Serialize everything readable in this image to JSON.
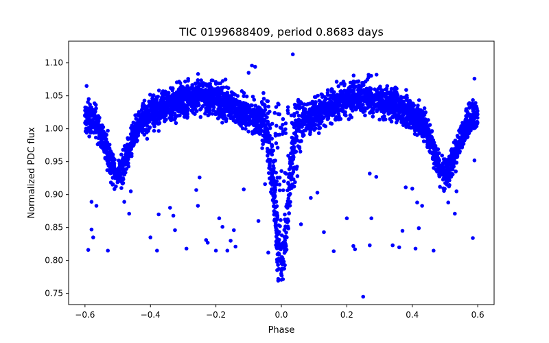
{
  "chart_data": {
    "type": "scatter",
    "title": "TIC 0199688409, period 0.8683 days",
    "xlabel": "Phase",
    "ylabel": "Normalized PDC flux",
    "xlim": [
      -0.65,
      0.65
    ],
    "ylim": [
      0.733,
      1.133
    ],
    "x_ticks": [
      -0.6,
      -0.4,
      -0.2,
      0.0,
      0.2,
      0.4,
      0.6
    ],
    "x_tick_labels": [
      "−0.6",
      "−0.4",
      "−0.2",
      "0.0",
      "0.2",
      "0.4",
      "0.6"
    ],
    "y_ticks": [
      0.75,
      0.8,
      0.85,
      0.9,
      0.95,
      1.0,
      1.05,
      1.1
    ],
    "y_tick_labels": [
      "0.75",
      "0.80",
      "0.85",
      "0.90",
      "0.95",
      "1.00",
      "1.05",
      "1.10"
    ],
    "grid": false,
    "marker_color": "#0000ff",
    "series": [
      {
        "x_range": [
          -0.6,
          0.6
        ],
        "secondary_eclipse": {
          "phase": 0.5,
          "min_flux": 0.97
        },
        "primary_eclipse": {
          "phase": 0.0,
          "min_flux": 0.79
        },
        "quadrature_max_flux": 1.04,
        "outliers": [
          {
            "x": -0.59,
            "y": 0.816
          },
          {
            "x": -0.58,
            "y": 0.889
          },
          {
            "x": -0.58,
            "y": 0.847
          },
          {
            "x": -0.575,
            "y": 0.835
          },
          {
            "x": -0.565,
            "y": 0.883
          },
          {
            "x": -0.53,
            "y": 0.815
          },
          {
            "x": -0.48,
            "y": 0.889
          },
          {
            "x": -0.465,
            "y": 0.871
          },
          {
            "x": -0.46,
            "y": 0.905
          },
          {
            "x": -0.4,
            "y": 0.835
          },
          {
            "x": -0.38,
            "y": 0.815
          },
          {
            "x": -0.375,
            "y": 0.87
          },
          {
            "x": -0.34,
            "y": 0.88
          },
          {
            "x": -0.325,
            "y": 0.846
          },
          {
            "x": -0.33,
            "y": 0.868
          },
          {
            "x": -0.29,
            "y": 0.818
          },
          {
            "x": -0.26,
            "y": 0.907
          },
          {
            "x": -0.255,
            "y": 0.883
          },
          {
            "x": -0.25,
            "y": 0.926
          },
          {
            "x": -0.23,
            "y": 0.831
          },
          {
            "x": -0.225,
            "y": 0.827
          },
          {
            "x": -0.2,
            "y": 0.815
          },
          {
            "x": -0.19,
            "y": 0.864
          },
          {
            "x": -0.18,
            "y": 0.851
          },
          {
            "x": -0.165,
            "y": 0.815
          },
          {
            "x": -0.155,
            "y": 0.83
          },
          {
            "x": -0.145,
            "y": 0.846
          },
          {
            "x": -0.14,
            "y": 0.821
          },
          {
            "x": -0.115,
            "y": 0.908
          },
          {
            "x": -0.09,
            "y": 1.096
          },
          {
            "x": -0.08,
            "y": 1.094
          },
          {
            "x": -0.1,
            "y": 1.085
          },
          {
            "x": -0.04,
            "y": 0.812
          },
          {
            "x": 0.035,
            "y": 1.113
          },
          {
            "x": 0.09,
            "y": 0.895
          },
          {
            "x": 0.11,
            "y": 0.903
          },
          {
            "x": 0.13,
            "y": 0.843
          },
          {
            "x": 0.16,
            "y": 0.814
          },
          {
            "x": 0.2,
            "y": 0.864
          },
          {
            "x": 0.22,
            "y": 0.822
          },
          {
            "x": 0.225,
            "y": 0.817
          },
          {
            "x": 0.25,
            "y": 0.745
          },
          {
            "x": 0.27,
            "y": 0.823
          },
          {
            "x": 0.275,
            "y": 0.864
          },
          {
            "x": 0.27,
            "y": 0.932
          },
          {
            "x": 0.29,
            "y": 0.927
          },
          {
            "x": 0.34,
            "y": 0.823
          },
          {
            "x": 0.36,
            "y": 0.82
          },
          {
            "x": 0.37,
            "y": 0.845
          },
          {
            "x": 0.38,
            "y": 0.911
          },
          {
            "x": 0.4,
            "y": 0.909
          },
          {
            "x": 0.41,
            "y": 0.818
          },
          {
            "x": 0.415,
            "y": 0.888
          },
          {
            "x": 0.42,
            "y": 0.849
          },
          {
            "x": 0.43,
            "y": 0.883
          },
          {
            "x": 0.465,
            "y": 0.815
          },
          {
            "x": 0.51,
            "y": 0.888
          },
          {
            "x": 0.53,
            "y": 0.871
          },
          {
            "x": 0.535,
            "y": 0.905
          },
          {
            "x": 0.585,
            "y": 0.834
          },
          {
            "x": 0.59,
            "y": 0.952
          },
          {
            "x": 0.59,
            "y": 1.076
          },
          {
            "x": -0.595,
            "y": 1.065
          },
          {
            "x": 0.06,
            "y": 0.855
          },
          {
            "x": -0.07,
            "y": 0.86
          }
        ]
      }
    ]
  }
}
